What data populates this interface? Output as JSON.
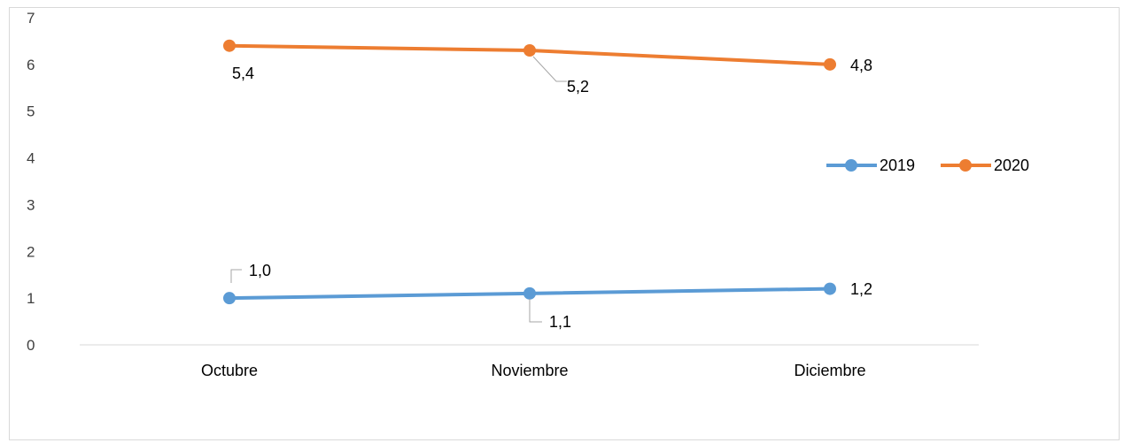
{
  "chart_data": {
    "type": "line",
    "categories": [
      "Octubre",
      "Noviembre",
      "Diciembre"
    ],
    "ylim": [
      0,
      7
    ],
    "yticks": [
      "0",
      "1",
      "2",
      "3",
      "4",
      "5",
      "6",
      "7"
    ],
    "grid": false,
    "legend_position": "right",
    "series": [
      {
        "name": "2019",
        "color": "#5b9bd5",
        "values": [
          1.0,
          1.1,
          1.2
        ],
        "labels": [
          "1,0",
          "1,1",
          "1,2"
        ]
      },
      {
        "name": "2020",
        "color": "#ed7d31",
        "values": [
          6.4,
          6.3,
          6.0
        ],
        "labels": [
          "5,4",
          "5,2",
          "4,8"
        ]
      }
    ]
  }
}
